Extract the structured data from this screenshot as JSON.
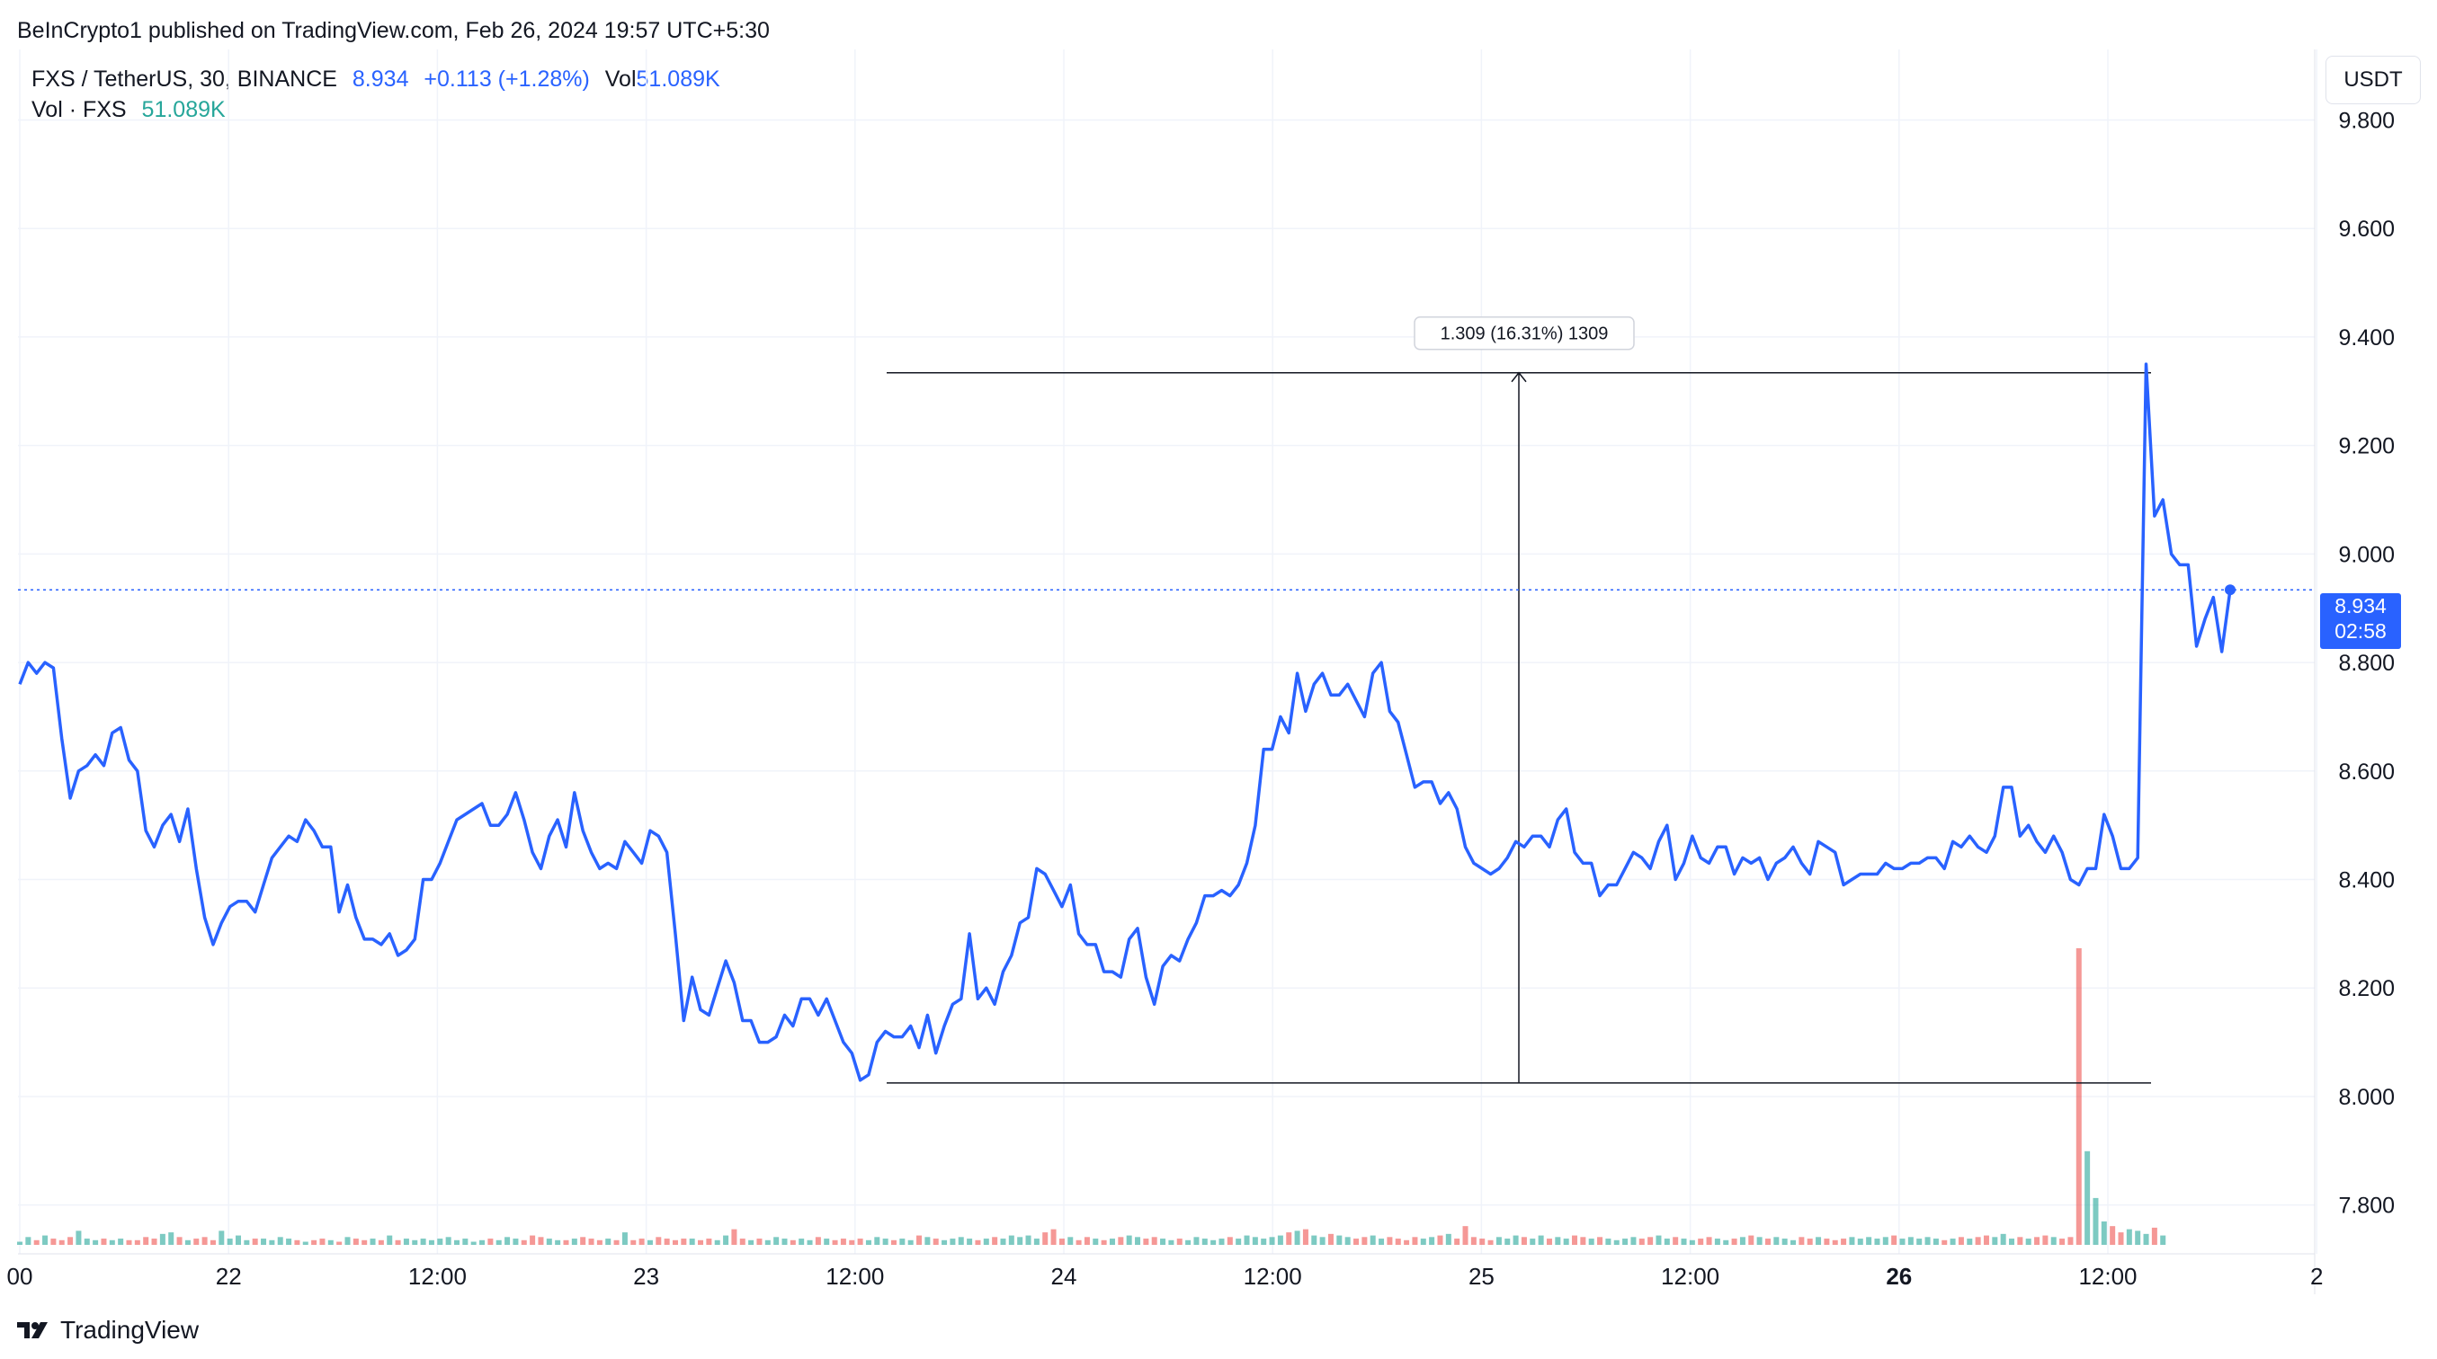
{
  "header": {
    "published": "BeInCrypto1 published on TradingView.com, Feb 26, 2024 19:57 UTC+5:30"
  },
  "legend": {
    "symbol": "FXS / TetherUS, 30, BINANCE",
    "price": "8.934",
    "change": "+0.113 (+1.28%)",
    "vol_label": "Vol",
    "vol_value": "51.089K",
    "vol_row_label": "Vol · FXS",
    "vol_row_value": "51.089K"
  },
  "toolbar": {
    "currency": "USDT"
  },
  "price_tag": {
    "price": "8.934",
    "countdown": "02:58"
  },
  "measure": {
    "label": "1.309 (16.31%) 1309",
    "from": 8.025,
    "to": 9.334
  },
  "footer": {
    "brand": "TradingView"
  },
  "colors": {
    "line": "#2962ff",
    "vol_up": "#26a69a",
    "vol_down": "#ef5350",
    "grid": "#f0f3fa"
  },
  "chart_data": {
    "type": "line",
    "title": "FXS / TetherUS, 30, BINANCE",
    "xlabel": "",
    "ylabel": "",
    "x_ticks": [
      "00",
      "22",
      "12:00",
      "23",
      "12:00",
      "24",
      "12:00",
      "25",
      "12:00",
      "26",
      "12:00",
      "2"
    ],
    "y_ticks": [
      7.8,
      8.0,
      8.2,
      8.4,
      8.6,
      8.8,
      9.0,
      9.2,
      9.4,
      9.6,
      9.8
    ],
    "ylim": [
      7.71,
      9.93
    ],
    "grid": true,
    "series": [
      {
        "name": "FXS / TetherUS",
        "values": [
          8.76,
          8.8,
          8.78,
          8.8,
          8.79,
          8.66,
          8.55,
          8.6,
          8.61,
          8.63,
          8.61,
          8.67,
          8.68,
          8.62,
          8.6,
          8.49,
          8.46,
          8.5,
          8.52,
          8.47,
          8.53,
          8.42,
          8.33,
          8.28,
          8.32,
          8.35,
          8.36,
          8.36,
          8.34,
          8.39,
          8.44,
          8.46,
          8.48,
          8.47,
          8.51,
          8.49,
          8.46,
          8.46,
          8.34,
          8.39,
          8.33,
          8.29,
          8.29,
          8.28,
          8.3,
          8.26,
          8.27,
          8.29,
          8.4,
          8.4,
          8.43,
          8.47,
          8.51,
          8.52,
          8.53,
          8.54,
          8.5,
          8.5,
          8.52,
          8.56,
          8.51,
          8.45,
          8.42,
          8.48,
          8.51,
          8.46,
          8.56,
          8.49,
          8.45,
          8.42,
          8.43,
          8.42,
          8.47,
          8.45,
          8.43,
          8.49,
          8.48,
          8.45,
          8.3,
          8.14,
          8.22,
          8.16,
          8.15,
          8.2,
          8.25,
          8.21,
          8.14,
          8.14,
          8.1,
          8.1,
          8.11,
          8.15,
          8.13,
          8.18,
          8.18,
          8.15,
          8.18,
          8.14,
          8.1,
          8.08,
          8.03,
          8.04,
          8.1,
          8.12,
          8.11,
          8.11,
          8.13,
          8.09,
          8.15,
          8.08,
          8.13,
          8.17,
          8.18,
          8.3,
          8.18,
          8.2,
          8.17,
          8.23,
          8.26,
          8.32,
          8.33,
          8.42,
          8.41,
          8.38,
          8.35,
          8.39,
          8.3,
          8.28,
          8.28,
          8.23,
          8.23,
          8.22,
          8.29,
          8.31,
          8.22,
          8.17,
          8.24,
          8.26,
          8.25,
          8.29,
          8.32,
          8.37,
          8.37,
          8.38,
          8.37,
          8.39,
          8.43,
          8.5,
          8.64,
          8.64,
          8.7,
          8.67,
          8.78,
          8.71,
          8.76,
          8.78,
          8.74,
          8.74,
          8.76,
          8.73,
          8.7,
          8.78,
          8.8,
          8.71,
          8.69,
          8.63,
          8.57,
          8.58,
          8.58,
          8.54,
          8.56,
          8.53,
          8.46,
          8.43,
          8.42,
          8.41,
          8.42,
          8.44,
          8.47,
          8.46,
          8.48,
          8.48,
          8.46,
          8.51,
          8.53,
          8.45,
          8.43,
          8.43,
          8.37,
          8.39,
          8.39,
          8.42,
          8.45,
          8.44,
          8.42,
          8.47,
          8.5,
          8.4,
          8.43,
          8.48,
          8.44,
          8.43,
          8.46,
          8.46,
          8.41,
          8.44,
          8.43,
          8.44,
          8.4,
          8.43,
          8.44,
          8.46,
          8.43,
          8.41,
          8.47,
          8.46,
          8.45,
          8.39,
          8.4,
          8.41,
          8.41,
          8.41,
          8.43,
          8.42,
          8.42,
          8.43,
          8.43,
          8.44,
          8.44,
          8.42,
          8.47,
          8.46,
          8.48,
          8.46,
          8.45,
          8.48,
          8.57,
          8.57,
          8.48,
          8.5,
          8.47,
          8.45,
          8.48,
          8.45,
          8.4,
          8.39,
          8.42,
          8.42,
          8.52,
          8.48,
          8.42,
          8.42,
          8.44,
          9.35,
          9.07,
          9.1,
          9.0,
          8.98,
          8.98,
          8.83,
          8.88,
          8.92,
          8.82,
          8.934
        ]
      },
      {
        "name": "Vol · FXS",
        "values": [
          2,
          5,
          3,
          6,
          4,
          3,
          5,
          9,
          4,
          3,
          4,
          3,
          4,
          3,
          3,
          5,
          4,
          7,
          8,
          5,
          3,
          4,
          5,
          3,
          9,
          4,
          6,
          3,
          4,
          4,
          3,
          5,
          4,
          3,
          2,
          3,
          4,
          3,
          2,
          5,
          4,
          3,
          4,
          3,
          6,
          3,
          4,
          3,
          4,
          3,
          4,
          5,
          3,
          4,
          2,
          3,
          4,
          3,
          5,
          4,
          3,
          6,
          5,
          4,
          3,
          3,
          4,
          5,
          4,
          3,
          4,
          3,
          8,
          3,
          4,
          3,
          5,
          4,
          3,
          4,
          4,
          3,
          4,
          3,
          6,
          10,
          4,
          3,
          4,
          3,
          5,
          4,
          3,
          4,
          3,
          5,
          4,
          3,
          4,
          3,
          4,
          3,
          5,
          4,
          3,
          4,
          3,
          6,
          5,
          4,
          3,
          4,
          5,
          4,
          3,
          4,
          5,
          4,
          6,
          5,
          6,
          4,
          8,
          10,
          4,
          5,
          3,
          5,
          4,
          3,
          4,
          5,
          6,
          5,
          4,
          5,
          4,
          3,
          4,
          3,
          5,
          4,
          3,
          4,
          5,
          4,
          6,
          5,
          4,
          5,
          6,
          8,
          9,
          10,
          6,
          5,
          7,
          6,
          5,
          4,
          5,
          6,
          4,
          5,
          4,
          3,
          5,
          4,
          5,
          6,
          7,
          4,
          12,
          5,
          4,
          3,
          5,
          4,
          6,
          5,
          4,
          6,
          4,
          5,
          4,
          6,
          5,
          4,
          5,
          4,
          3,
          4,
          5,
          4,
          5,
          6,
          4,
          5,
          4,
          3,
          4,
          5,
          4,
          3,
          4,
          5,
          6,
          5,
          4,
          5,
          4,
          3,
          5,
          4,
          5,
          4,
          3,
          4,
          5,
          4,
          5,
          4,
          5,
          6,
          4,
          5,
          4,
          5,
          4,
          3,
          4,
          5,
          4,
          5,
          6,
          5,
          7,
          4,
          5,
          4,
          5,
          6,
          5,
          4,
          5,
          190,
          60,
          30,
          15,
          12,
          8,
          10,
          9,
          7,
          11,
          6
        ]
      }
    ]
  }
}
